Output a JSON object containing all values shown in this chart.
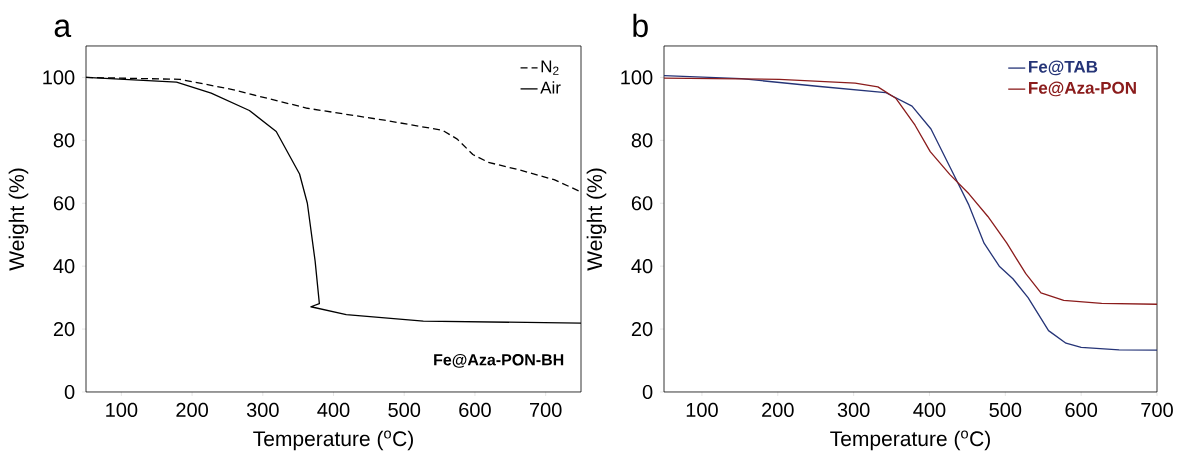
{
  "chart_data": [
    {
      "type": "line",
      "title": "a",
      "xlabel": "Temperature ($^{o}$C)",
      "ylabel": "Weight (%)",
      "xlim": [
        50,
        750
      ],
      "ylim": [
        0,
        110
      ],
      "xticks": [
        100,
        200,
        300,
        400,
        500,
        600,
        700
      ],
      "yticks": [
        0,
        20,
        40,
        60,
        80,
        100
      ],
      "legend": "top right",
      "grid": false,
      "marker": "none",
      "annotations": [
        "Fe@Aza-PON-BH"
      ],
      "series": [
        {
          "name": "N$_{2}$",
          "color": "#000000",
          "line_style": "dashed",
          "x": [
            50,
            183,
            254,
            363,
            472,
            554,
            575,
            597,
            619,
            663,
            712,
            750
          ],
          "values": [
            100,
            99.4,
            96.3,
            90.2,
            86.4,
            83.2,
            80.4,
            75.5,
            73,
            70.6,
            67.5,
            63.6
          ]
        },
        {
          "name": "Air",
          "color": "#000000",
          "line_style": "solid",
          "x": [
            50,
            178,
            227,
            281,
            319,
            352,
            363,
            374,
            380,
            368,
            418,
            527,
            750
          ],
          "values": [
            100,
            98.5,
            95,
            89.5,
            82.8,
            69.3,
            60,
            41.6,
            28.1,
            27.1,
            24.6,
            22.5,
            21.9
          ]
        }
      ]
    },
    {
      "type": "line",
      "title": "b",
      "xlabel": "Temperature ($^{o}$C)",
      "ylabel": "Weight (%)",
      "xlim": [
        50,
        700
      ],
      "ylim": [
        0,
        110
      ],
      "xticks": [
        100,
        200,
        300,
        400,
        500,
        600,
        700
      ],
      "yticks": [
        0,
        20,
        40,
        60,
        80,
        100
      ],
      "legend": "top right",
      "grid": false,
      "marker": "none",
      "series": [
        {
          "name": "Fe@TAB",
          "color": "#253477",
          "line_style": "solid",
          "x": [
            50,
            152,
            252,
            342,
            377,
            402,
            427,
            452,
            472,
            492,
            510,
            530,
            557,
            580,
            600,
            650,
            700
          ],
          "values": [
            100.6,
            99.6,
            97.2,
            95.2,
            90.9,
            83.6,
            71.5,
            59.4,
            47.3,
            40,
            36,
            30,
            19.5,
            15.5,
            14.2,
            13.4,
            13.3
          ]
        },
        {
          "name": "Fe@Aza-PON",
          "color": "#8b1c1c",
          "line_style": "solid",
          "x": [
            50,
            202,
            302,
            332,
            356,
            381,
            401,
            427,
            452,
            477,
            502,
            527,
            547,
            577,
            627,
            700
          ],
          "values": [
            99.8,
            99.4,
            98.2,
            97,
            93.3,
            84.8,
            76.4,
            69.1,
            63,
            55.8,
            47.3,
            37.6,
            31.5,
            29.1,
            28.2,
            27.9
          ]
        }
      ]
    }
  ]
}
